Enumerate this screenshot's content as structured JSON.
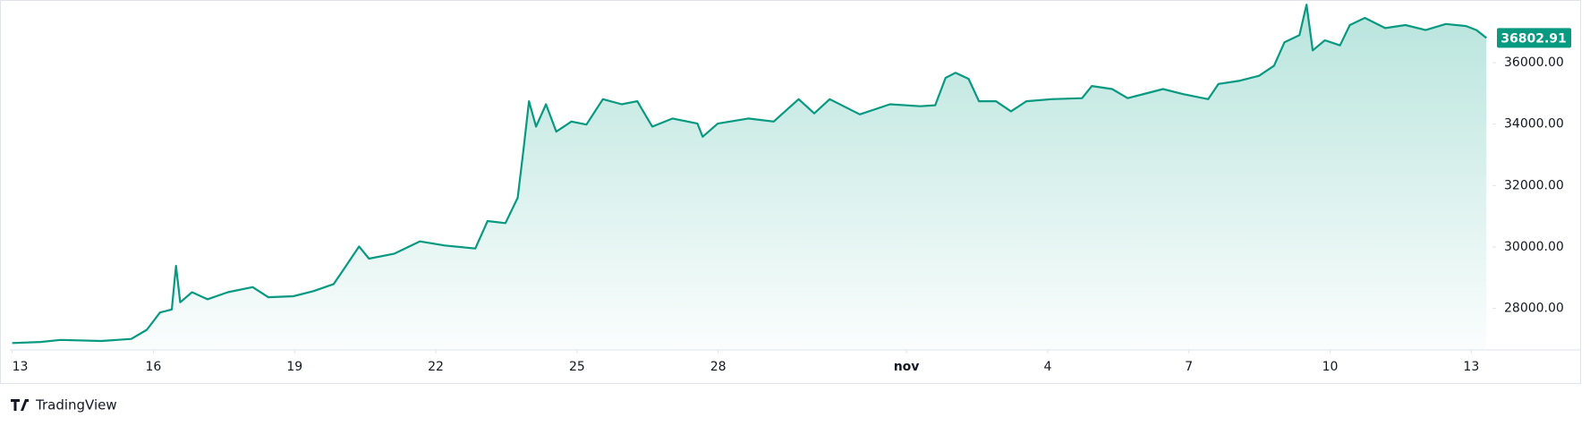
{
  "chart_data": {
    "type": "area",
    "x": [
      0,
      0.6,
      1.03,
      1.89,
      2.53,
      2.86,
      3.14,
      3.39,
      3.48,
      3.57,
      3.82,
      4.15,
      4.58,
      5.11,
      5.44,
      5.97,
      6.4,
      6.83,
      7.05,
      7.37,
      7.58,
      8.12,
      8.66,
      9.19,
      9.84,
      10.1,
      10.48,
      10.74,
      10.87,
      10.98,
      11.13,
      11.34,
      11.56,
      11.88,
      12.2,
      12.55,
      12.95,
      13.28,
      13.6,
      14.03,
      14.56,
      14.67,
      14.99,
      15.64,
      16.18,
      16.71,
      17.04,
      17.37,
      18.01,
      18.65,
      19.29,
      19.61,
      19.83,
      20.04,
      20.32,
      20.54,
      20.9,
      21.22,
      21.55,
      22.08,
      22.73,
      22.94,
      23.37,
      23.7,
      24.12,
      24.45,
      24.88,
      25.41,
      25.63,
      26.06,
      26.49,
      26.81,
      27.03,
      27.35,
      27.5,
      27.63,
      27.89,
      28.21,
      28.42,
      28.74,
      29.17,
      29.6,
      30.03,
      30.46,
      30.89,
      31.11,
      31.32
    ],
    "values": [
      26875,
      26908,
      26975,
      26942,
      27008,
      27306,
      27867,
      27967,
      29388,
      28198,
      28529,
      28298,
      28529,
      28694,
      28364,
      28396,
      28562,
      28793,
      29289,
      30017,
      29620,
      29785,
      30182,
      30050,
      29950,
      30843,
      30777,
      31603,
      33256,
      34744,
      33917,
      34645,
      33752,
      34083,
      33983,
      34810,
      34645,
      34744,
      33917,
      34182,
      34016,
      33587,
      34016,
      34182,
      34083,
      34810,
      34347,
      34810,
      34314,
      34645,
      34579,
      34612,
      35504,
      35669,
      35471,
      34744,
      34744,
      34413,
      34744,
      34810,
      34843,
      35240,
      35140,
      34843,
      35008,
      35140,
      34975,
      34810,
      35306,
      35405,
      35570,
      35901,
      36661,
      36893,
      37885,
      36397,
      36727,
      36562,
      37223,
      37455,
      37124,
      37223,
      37058,
      37256,
      37190,
      37058,
      36802.91
    ],
    "color": "#089981",
    "xlim": [
      -0.05,
      31.45
    ],
    "xticks": [
      {
        "value": 0,
        "label": "13"
      },
      {
        "value": 3,
        "label": "16"
      },
      {
        "value": 6,
        "label": "19"
      },
      {
        "value": 9,
        "label": "22"
      },
      {
        "value": 12,
        "label": "25"
      },
      {
        "value": 15,
        "label": "28"
      },
      {
        "value": 19,
        "label": "nov"
      },
      {
        "value": 22,
        "label": "4"
      },
      {
        "value": 25,
        "label": "7"
      },
      {
        "value": 28,
        "label": "10"
      },
      {
        "value": 31,
        "label": "13"
      }
    ],
    "ylim": [
      26650,
      37950
    ],
    "yticks": [
      {
        "value": 28000,
        "label": "28000.00"
      },
      {
        "value": 30000,
        "label": "30000.00"
      },
      {
        "value": 32000,
        "label": "32000.00"
      },
      {
        "value": 34000,
        "label": "34000.00"
      },
      {
        "value": 36000,
        "label": "36000.00"
      }
    ],
    "grid": false
  },
  "watermark": "TradingView"
}
